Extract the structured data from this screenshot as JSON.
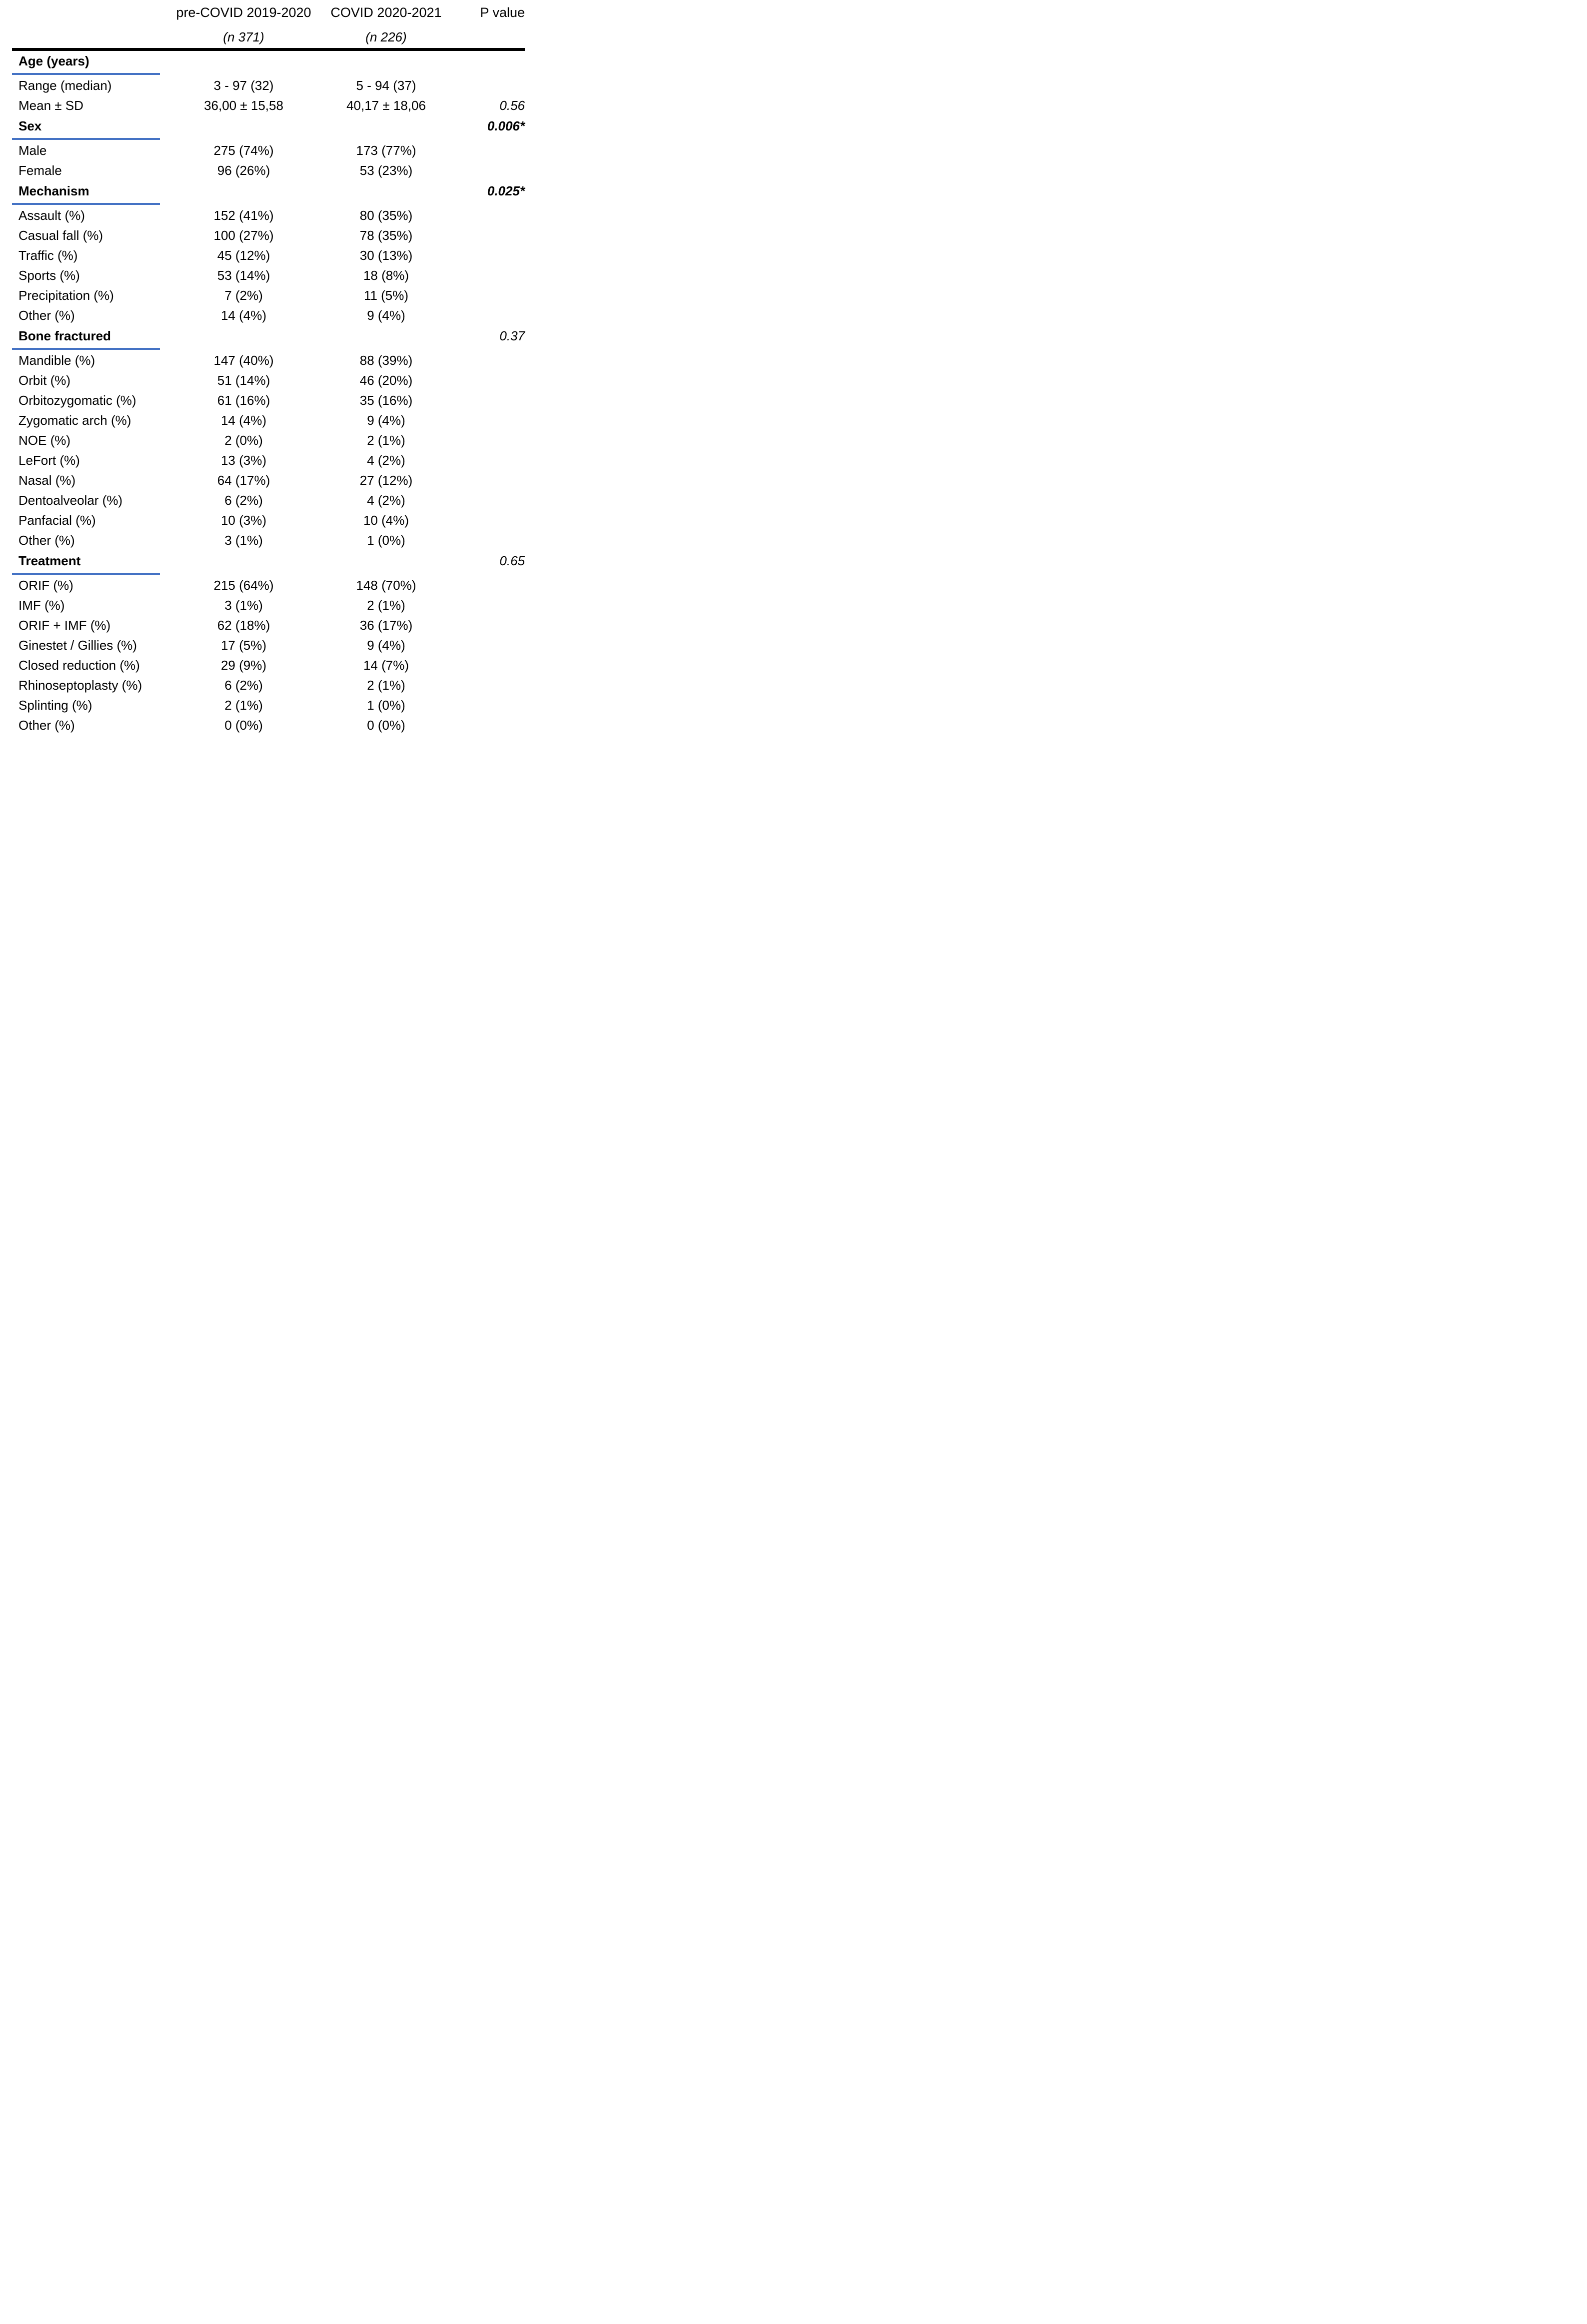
{
  "accent_color": "#4472C4",
  "rule_color": "#000000",
  "table": {
    "columns": [
      {
        "title": "",
        "subtitle": ""
      },
      {
        "title": "pre-COVID 2019-2020",
        "subtitle": "(n 371)"
      },
      {
        "title": "COVID 2020-2021",
        "subtitle": "(n 226)"
      },
      {
        "title": "P value",
        "subtitle": ""
      }
    ],
    "rows": [
      {
        "type": "section",
        "label": "Age (years)",
        "pre": "",
        "covid": "",
        "p": "",
        "p_significant": false
      },
      {
        "type": "data",
        "label": "Range (median)",
        "pre": "3 - 97 (32)",
        "covid": "5 - 94 (37)",
        "p": "",
        "p_significant": false
      },
      {
        "type": "data",
        "label": "Mean ± SD",
        "pre": "36,00 ± 15,58",
        "covid": "40,17 ± 18,06",
        "p": "0.56",
        "p_significant": false
      },
      {
        "type": "section",
        "label": "Sex",
        "pre": "",
        "covid": "",
        "p": "0.006*",
        "p_significant": true
      },
      {
        "type": "data",
        "label": "Male",
        "pre": "275 (74%)",
        "covid": "173 (77%)",
        "p": "",
        "p_significant": false
      },
      {
        "type": "data",
        "label": "Female",
        "pre": "96 (26%)",
        "covid": "53 (23%)",
        "p": "",
        "p_significant": false
      },
      {
        "type": "section",
        "label": "Mechanism",
        "pre": "",
        "covid": "",
        "p": "0.025*",
        "p_significant": true
      },
      {
        "type": "data",
        "label": "Assault (%)",
        "pre": "152 (41%)",
        "covid": "80 (35%)",
        "p": "",
        "p_significant": false
      },
      {
        "type": "data",
        "label": "Casual fall (%)",
        "pre": "100 (27%)",
        "covid": "78 (35%)",
        "p": "",
        "p_significant": false
      },
      {
        "type": "data",
        "label": "Traffic (%)",
        "pre": "45 (12%)",
        "covid": "30 (13%)",
        "p": "",
        "p_significant": false
      },
      {
        "type": "data",
        "label": "Sports (%)",
        "pre": "53 (14%)",
        "covid": "18 (8%)",
        "p": "",
        "p_significant": false
      },
      {
        "type": "data",
        "label": "Precipitation (%)",
        "pre": "7 (2%)",
        "covid": "11 (5%)",
        "p": "",
        "p_significant": false
      },
      {
        "type": "data",
        "label": "Other (%)",
        "pre": "14 (4%)",
        "covid": "9 (4%)",
        "p": "",
        "p_significant": false
      },
      {
        "type": "section",
        "label": "Bone fractured",
        "pre": "",
        "covid": "",
        "p": "0.37",
        "p_significant": false
      },
      {
        "type": "data",
        "label": "Mandible (%)",
        "pre": "147 (40%)",
        "covid": "88 (39%)",
        "p": "",
        "p_significant": false
      },
      {
        "type": "data",
        "label": "Orbit (%)",
        "pre": "51 (14%)",
        "covid": "46 (20%)",
        "p": "",
        "p_significant": false
      },
      {
        "type": "data",
        "label": "Orbitozygomatic (%)",
        "pre": "61 (16%)",
        "covid": "35 (16%)",
        "p": "",
        "p_significant": false
      },
      {
        "type": "data",
        "label": "Zygomatic arch (%)",
        "pre": "14 (4%)",
        "covid": "9 (4%)",
        "p": "",
        "p_significant": false
      },
      {
        "type": "data",
        "label": "NOE (%)",
        "pre": "2 (0%)",
        "covid": "2 (1%)",
        "p": "",
        "p_significant": false
      },
      {
        "type": "data",
        "label": "LeFort (%)",
        "pre": "13 (3%)",
        "covid": "4 (2%)",
        "p": "",
        "p_significant": false
      },
      {
        "type": "data",
        "label": "Nasal (%)",
        "pre": "64 (17%)",
        "covid": "27 (12%)",
        "p": "",
        "p_significant": false
      },
      {
        "type": "data",
        "label": "Dentoalveolar (%)",
        "pre": "6 (2%)",
        "covid": "4 (2%)",
        "p": "",
        "p_significant": false
      },
      {
        "type": "data",
        "label": "Panfacial (%)",
        "pre": "10 (3%)",
        "covid": "10 (4%)",
        "p": "",
        "p_significant": false
      },
      {
        "type": "data",
        "label": "Other (%)",
        "pre": "3 (1%)",
        "covid": "1 (0%)",
        "p": "",
        "p_significant": false
      },
      {
        "type": "section",
        "label": "Treatment",
        "pre": "",
        "covid": "",
        "p": "0.65",
        "p_significant": false
      },
      {
        "type": "data",
        "label": "ORIF (%)",
        "pre": "215 (64%)",
        "covid": "148 (70%)",
        "p": "",
        "p_significant": false
      },
      {
        "type": "data",
        "label": "IMF (%)",
        "pre": "3 (1%)",
        "covid": "2 (1%)",
        "p": "",
        "p_significant": false
      },
      {
        "type": "data",
        "label": "ORIF + IMF (%)",
        "pre": "62 (18%)",
        "covid": "36 (17%)",
        "p": "",
        "p_significant": false
      },
      {
        "type": "data",
        "label": "Ginestet / Gillies (%)",
        "pre": "17 (5%)",
        "covid": "9 (4%)",
        "p": "",
        "p_significant": false
      },
      {
        "type": "data",
        "label": "Closed reduction (%)",
        "pre": "29 (9%)",
        "covid": "14 (7%)",
        "p": "",
        "p_significant": false
      },
      {
        "type": "data",
        "label": "Rhinoseptoplasty (%)",
        "pre": "6 (2%)",
        "covid": "2 (1%)",
        "p": "",
        "p_significant": false
      },
      {
        "type": "data",
        "label": "Splinting (%)",
        "pre": "2 (1%)",
        "covid": "1 (0%)",
        "p": "",
        "p_significant": false
      },
      {
        "type": "data",
        "label": "Other (%)",
        "pre": "0 (0%)",
        "covid": "0 (0%)",
        "p": "",
        "p_significant": false
      }
    ]
  }
}
